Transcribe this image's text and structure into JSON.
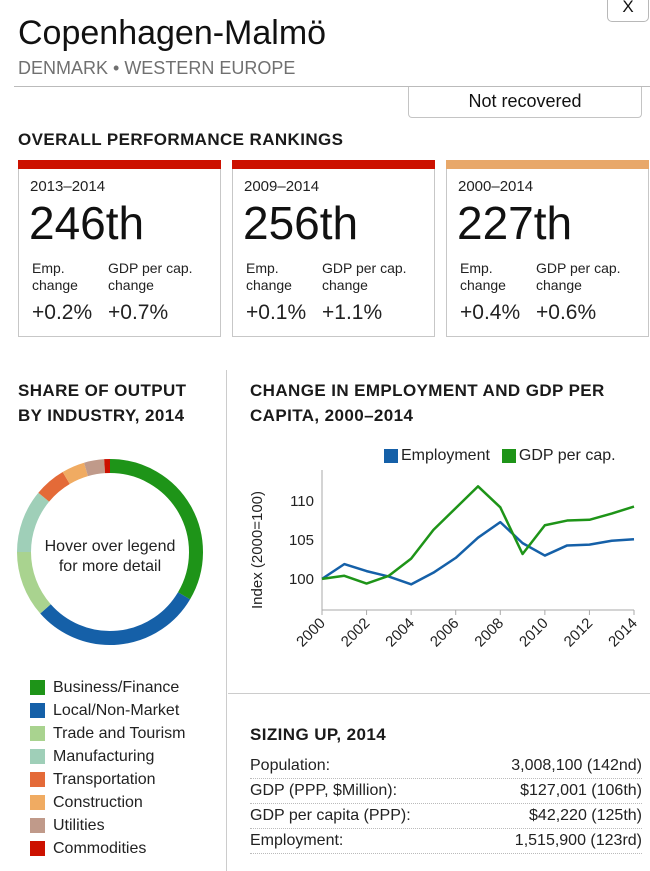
{
  "header": {
    "close_label": "X",
    "title": "Copenhagen-Malmö",
    "subtitle": "DENMARK • WESTERN EUROPE",
    "status": "Not recovered"
  },
  "rankings": {
    "heading": "OVERALL PERFORMANCE RANKINGS",
    "cards": [
      {
        "period": "2013–2014",
        "rank": "246th",
        "emp_label_1": "Emp.",
        "emp_label_2": "change",
        "gdp_label_1": "GDP per cap.",
        "gdp_label_2": "change",
        "emp_change": "+0.2%",
        "gdp_change": "+0.7%",
        "bar_color": "#cc1100"
      },
      {
        "period": "2009–2014",
        "rank": "256th",
        "emp_label_1": "Emp.",
        "emp_label_2": "change",
        "gdp_label_1": "GDP per cap.",
        "gdp_label_2": "change",
        "emp_change": "+0.1%",
        "gdp_change": "+1.1%",
        "bar_color": "#cc1100"
      },
      {
        "period": "2000–2014",
        "rank": "227th",
        "emp_label_1": "Emp.",
        "emp_label_2": "change",
        "gdp_label_1": "GDP per cap.",
        "gdp_label_2": "change",
        "emp_change": "+0.4%",
        "gdp_change": "+0.6%",
        "bar_color": "#e8a86a"
      }
    ]
  },
  "share": {
    "heading_1": "SHARE OF OUTPUT",
    "heading_2": "BY INDUSTRY, 2014",
    "center_1": "Hover over legend",
    "center_2": "for more detail"
  },
  "change": {
    "heading_1": "CHANGE IN EMPLOYMENT AND GDP PER",
    "heading_2": "CAPITA, 2000–2014"
  },
  "sizing": {
    "heading": "SIZING UP, 2014",
    "rows": [
      {
        "label": "Population:",
        "value": "3,008,100 (142nd)"
      },
      {
        "label": "GDP (PPP, $Million):",
        "value": "$127,001 (106th)"
      },
      {
        "label": "GDP per capita (PPP):",
        "value": "$42,220 (125th)"
      },
      {
        "label": "Employment:",
        "value": "1,515,900 (123rd)"
      }
    ]
  },
  "chart_data": [
    {
      "type": "pie",
      "title": "SHARE OF OUTPUT BY INDUSTRY, 2014",
      "categories": [
        "Business/Finance",
        "Local/Non-Market",
        "Trade and Tourism",
        "Manufacturing",
        "Transportation",
        "Construction",
        "Utilities",
        "Commodities"
      ],
      "values": [
        33.5,
        30,
        11.5,
        11,
        5.5,
        4,
        3.5,
        1
      ],
      "colors": [
        "#1e9418",
        "#1560a8",
        "#a9d38f",
        "#9fcfb8",
        "#e46a38",
        "#f0ab62",
        "#c09a8a",
        "#cc1100"
      ],
      "unit": "percent (estimated)"
    },
    {
      "type": "line",
      "title": "CHANGE IN EMPLOYMENT AND GDP PER CAPITA, 2000–2014",
      "xlabel": "",
      "ylabel": "Index (2000=100)",
      "x": [
        2000,
        2001,
        2002,
        2003,
        2004,
        2005,
        2006,
        2007,
        2008,
        2009,
        2010,
        2011,
        2012,
        2013,
        2014
      ],
      "xticks": [
        "2000",
        "2002",
        "2004",
        "2006",
        "2008",
        "2010",
        "2012",
        "2014"
      ],
      "yticks": [
        "100",
        "105",
        "110"
      ],
      "ylim": [
        96,
        114
      ],
      "legend": "top-right",
      "series": [
        {
          "name": "Employment",
          "color": "#1560a8",
          "values": [
            100,
            101.9,
            101.0,
            100.3,
            99.3,
            100.8,
            102.7,
            105.3,
            107.3,
            104.6,
            103.0,
            104.3,
            104.4,
            104.9,
            105.1
          ]
        },
        {
          "name": "GDP per cap.",
          "color": "#1e9418",
          "values": [
            100,
            100.4,
            99.4,
            100.4,
            102.6,
            106.3,
            109.1,
            111.9,
            109.2,
            103.2,
            106.9,
            107.5,
            107.6,
            108.4,
            109.3
          ]
        }
      ]
    }
  ]
}
